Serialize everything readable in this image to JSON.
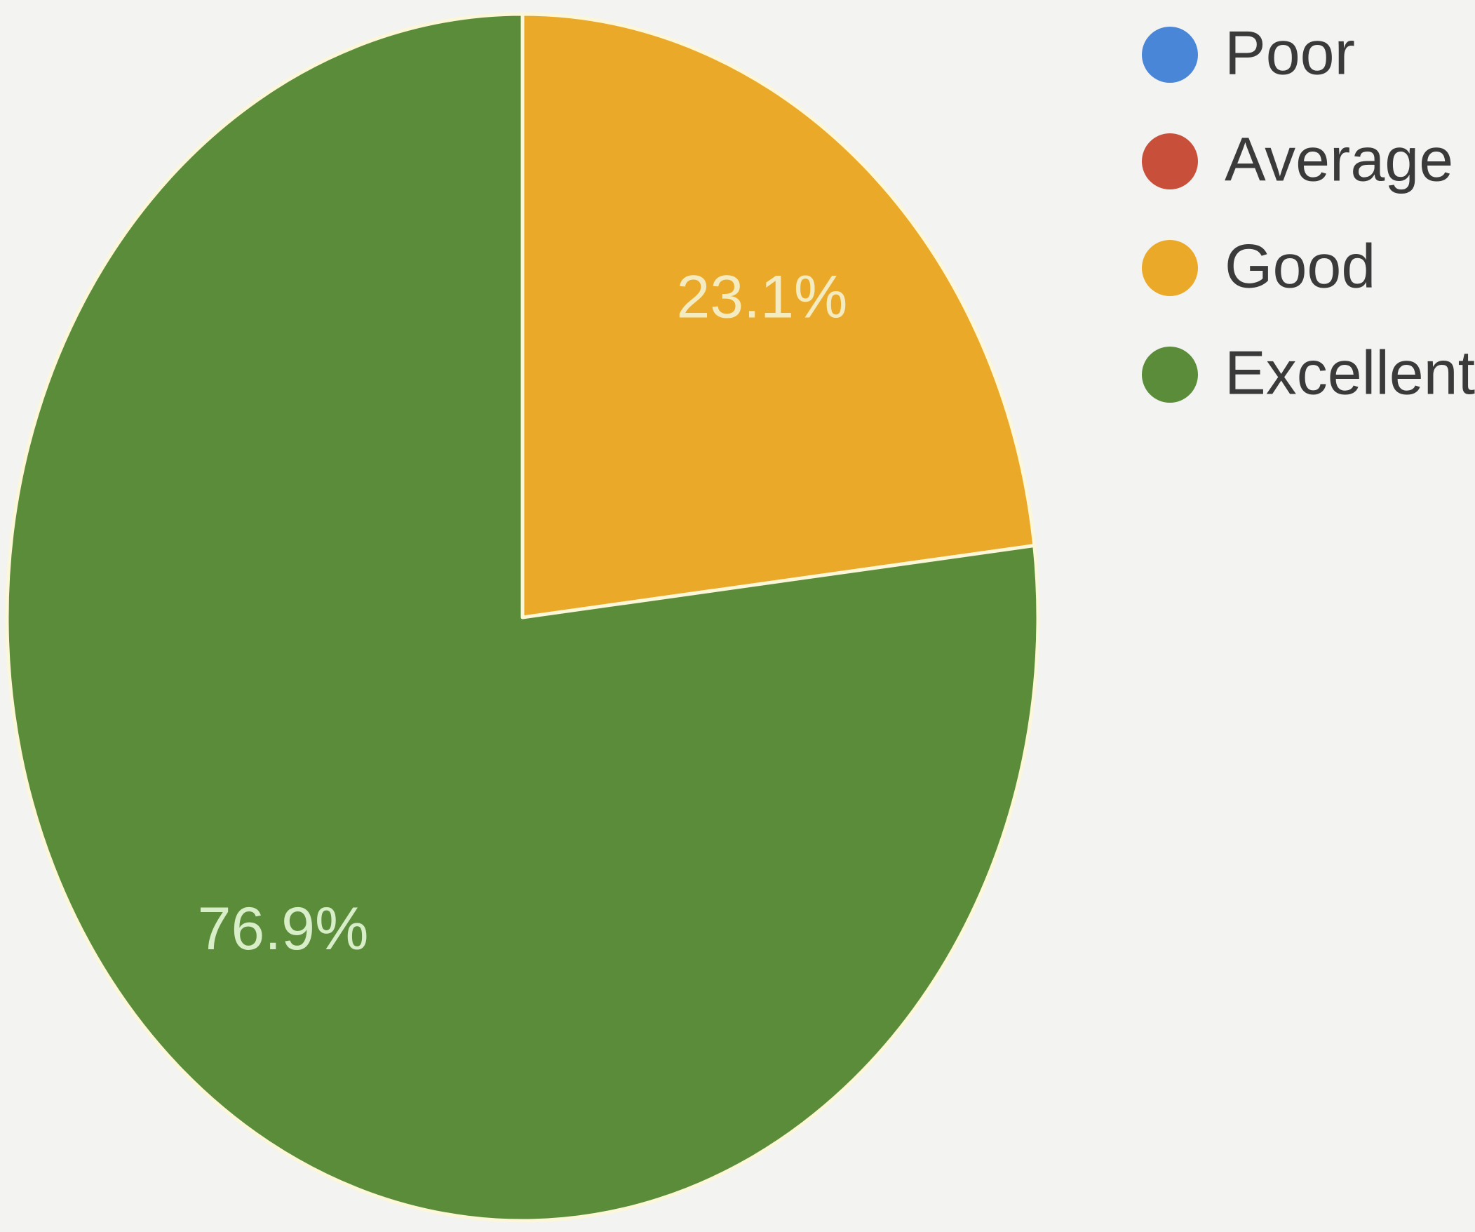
{
  "chart_data": {
    "type": "pie",
    "categories": [
      "Poor",
      "Average",
      "Good",
      "Excellent"
    ],
    "values": [
      0,
      0,
      23.1,
      76.9
    ],
    "unit": "%",
    "data_labels": [
      "",
      "",
      "23.1%",
      "76.9%"
    ],
    "colors": [
      "#4a86d8",
      "#c8503a",
      "#eaa928",
      "#5a8c3a"
    ],
    "label_colors": [
      "#ffffff",
      "#ffffff",
      "#f4ebc0",
      "#d7eec8"
    ],
    "start_angle_deg": 90,
    "direction": "clockwise",
    "legend": {
      "placement": "top-right",
      "entries": [
        "Poor",
        "Average",
        "Good",
        "Excellent"
      ]
    },
    "title": ""
  }
}
